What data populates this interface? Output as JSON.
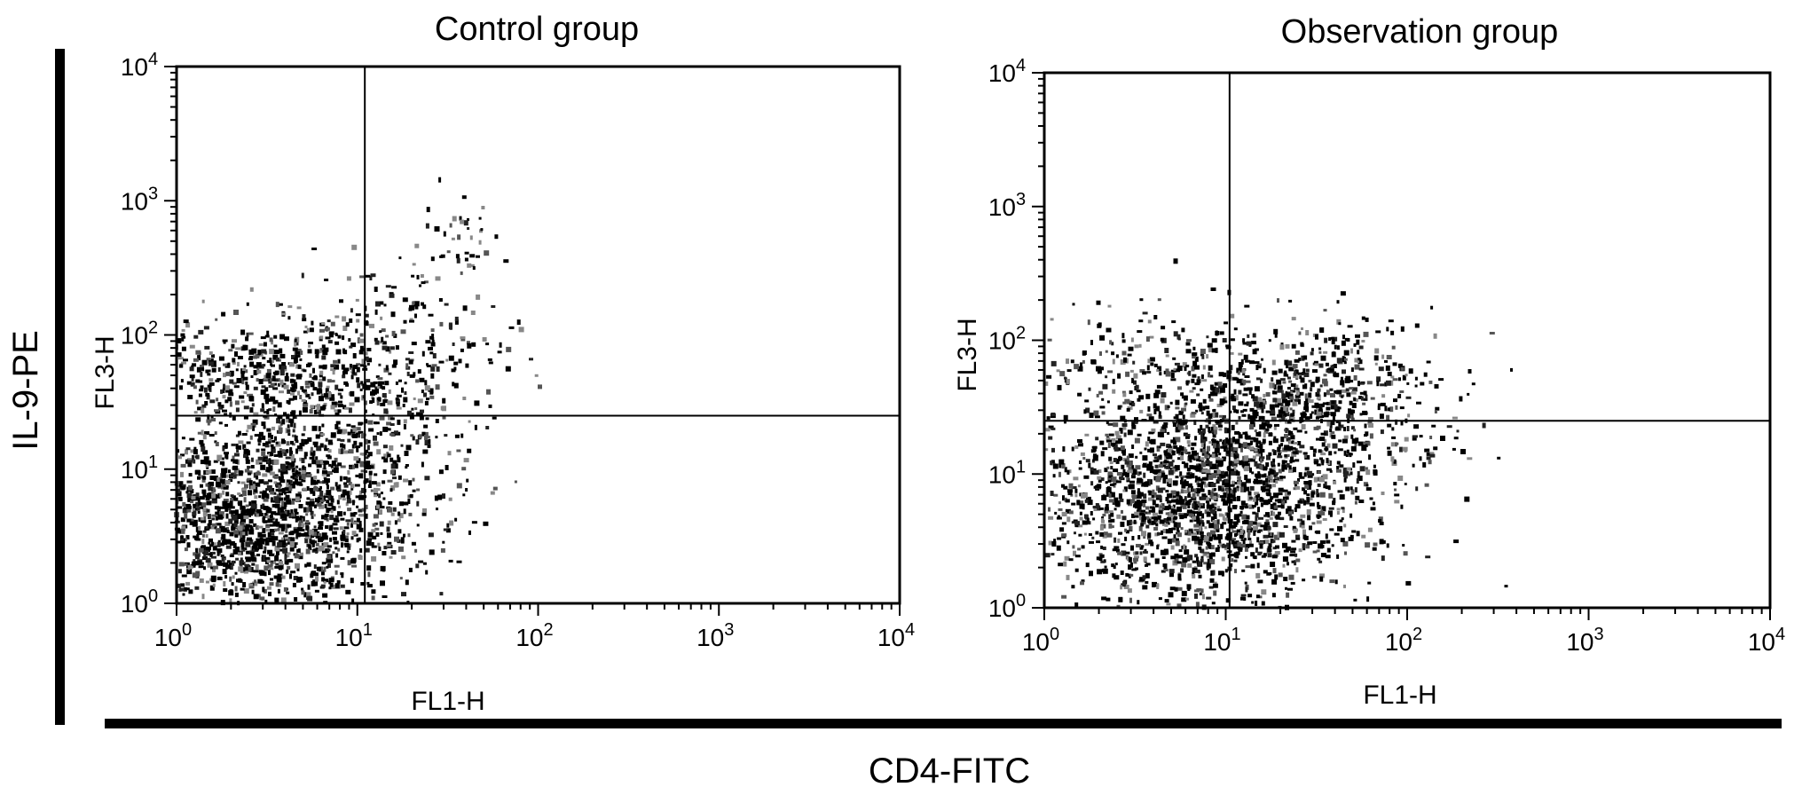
{
  "figure": {
    "outer_y_label": "IL-9-PE",
    "outer_x_label": "CD4-FITC"
  },
  "chart_data": [
    {
      "type": "scatter",
      "title": "Control group",
      "xlabel": "FL1-H",
      "ylabel": "FL3-H",
      "xscale": "log",
      "yscale": "log",
      "xlim": [
        1,
        10000
      ],
      "ylim": [
        1,
        10000
      ],
      "xticks": [
        1,
        10,
        100,
        1000,
        10000
      ],
      "yticks": [
        1,
        10,
        100,
        1000,
        10000
      ],
      "tick_labels": [
        {
          "base": "10",
          "exp": "0"
        },
        {
          "base": "10",
          "exp": "1"
        },
        {
          "base": "10",
          "exp": "2"
        },
        {
          "base": "10",
          "exp": "3"
        },
        {
          "base": "10",
          "exp": "4"
        }
      ],
      "quadrant_gate": {
        "x": 11,
        "y": 25
      },
      "clusters": [
        {
          "x": 2.5,
          "y": 4,
          "sx": 0.42,
          "sy": 0.4,
          "n": 1600
        },
        {
          "x": 6,
          "y": 8,
          "sx": 0.35,
          "sy": 0.4,
          "n": 500
        },
        {
          "x": 2.5,
          "y": 50,
          "sx": 0.4,
          "sy": 0.2,
          "n": 450
        },
        {
          "x": 15,
          "y": 60,
          "sx": 0.3,
          "sy": 0.35,
          "n": 350
        },
        {
          "x": 40,
          "y": 450,
          "sx": 0.12,
          "sy": 0.25,
          "n": 40
        }
      ]
    },
    {
      "type": "scatter",
      "title": "Observation group",
      "xlabel": "FL1-H",
      "ylabel": "FL3-H",
      "xscale": "log",
      "yscale": "log",
      "xlim": [
        1,
        10000
      ],
      "ylim": [
        1,
        10000
      ],
      "xticks": [
        1,
        10,
        100,
        1000,
        10000
      ],
      "yticks": [
        1,
        10,
        100,
        1000,
        10000
      ],
      "tick_labels": [
        {
          "base": "10",
          "exp": "0"
        },
        {
          "base": "10",
          "exp": "1"
        },
        {
          "base": "10",
          "exp": "2"
        },
        {
          "base": "10",
          "exp": "3"
        },
        {
          "base": "10",
          "exp": "4"
        }
      ],
      "quadrant_gate": {
        "x": 10.5,
        "y": 25
      },
      "clusters": [
        {
          "x": 7,
          "y": 7,
          "sx": 0.45,
          "sy": 0.42,
          "n": 2100
        },
        {
          "x": 30,
          "y": 30,
          "sx": 0.35,
          "sy": 0.35,
          "n": 700
        },
        {
          "x": 3,
          "y": 70,
          "sx": 0.4,
          "sy": 0.2,
          "n": 150
        }
      ]
    }
  ]
}
